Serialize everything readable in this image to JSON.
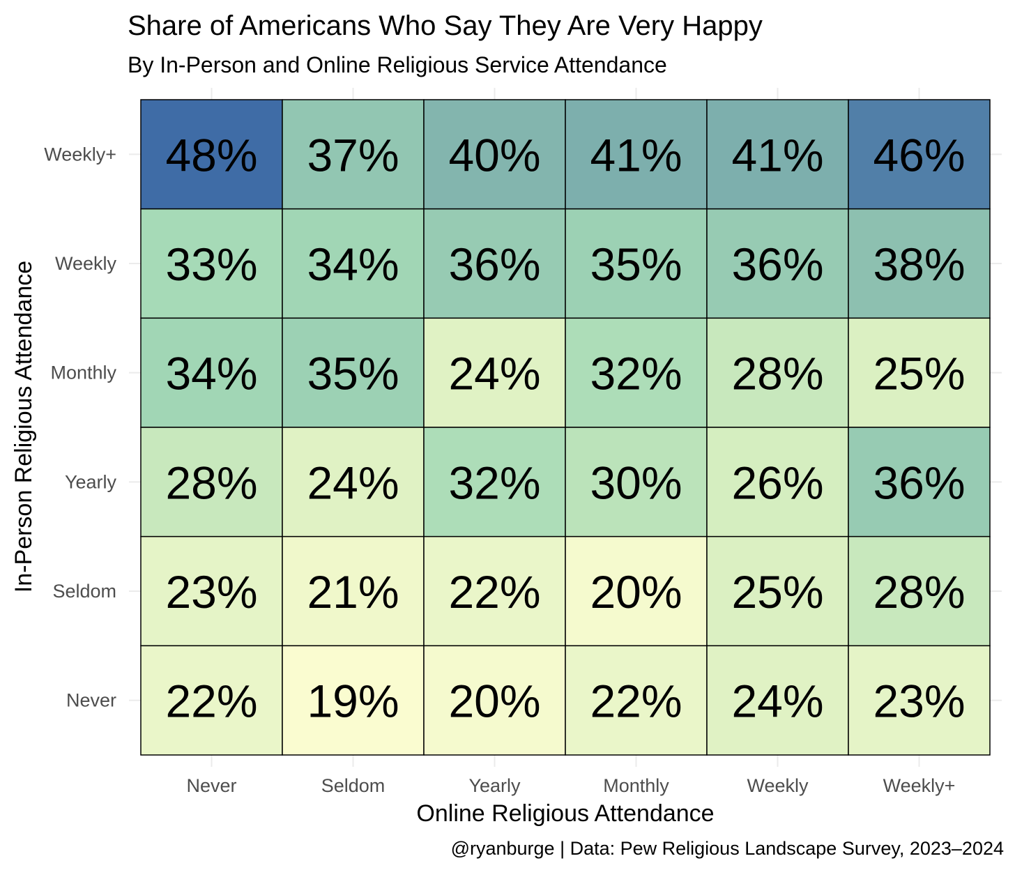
{
  "chart_data": {
    "type": "heatmap",
    "title": "Share of Americans Who Say They Are Very Happy",
    "subtitle": "By In-Person and Online Religious Service Attendance",
    "xlabel": "Online Religious Attendance",
    "ylabel": "In-Person Religious Attendance",
    "caption": "@ryanburge | Data: Pew Religious Landscape Survey, 2023–2024",
    "x_categories": [
      "Never",
      "Seldom",
      "Yearly",
      "Monthly",
      "Weekly",
      "Weekly+"
    ],
    "y_categories_top_to_bottom": [
      "Weekly+",
      "Weekly",
      "Monthly",
      "Yearly",
      "Seldom",
      "Never"
    ],
    "value_unit": "%",
    "values": [
      [
        48,
        37,
        40,
        41,
        41,
        46
      ],
      [
        33,
        34,
        36,
        35,
        36,
        38
      ],
      [
        34,
        35,
        24,
        32,
        28,
        25
      ],
      [
        28,
        24,
        32,
        30,
        26,
        36
      ],
      [
        23,
        21,
        22,
        20,
        25,
        28
      ],
      [
        22,
        19,
        20,
        22,
        24,
        23
      ]
    ],
    "color_scale": {
      "low_value": 19,
      "high_value": 48,
      "stops": [
        "#fafcd0",
        "#d4edbf",
        "#a3d9b6",
        "#7fb1ad",
        "#3f6ca6"
      ]
    },
    "legend": "none"
  }
}
